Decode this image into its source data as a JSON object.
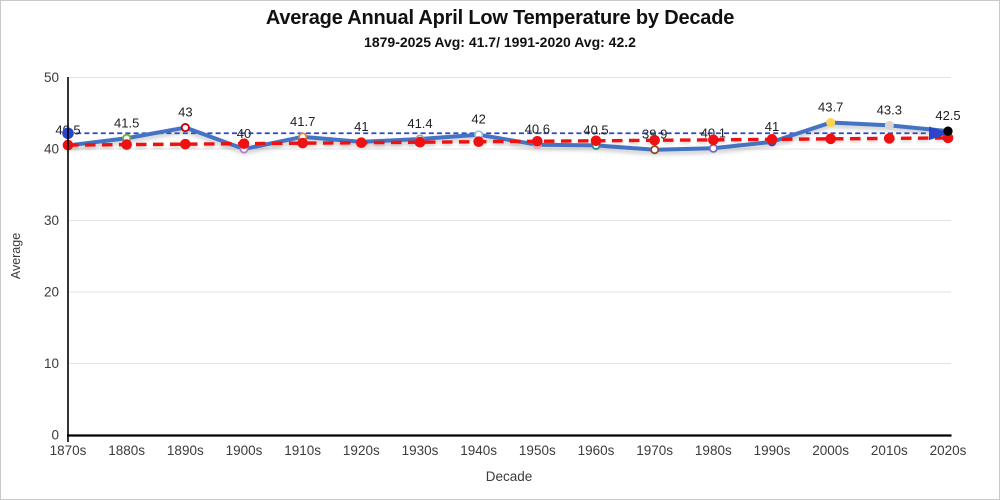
{
  "chart_data": {
    "type": "line",
    "title": "Average Annual April Low Temperature by Decade",
    "subtitle": "1879-2025 Avg: 41.7/ 1991-2020 Avg: 42.2",
    "xlabel": "Decade",
    "ylabel": "Average",
    "ylim": [
      0,
      50
    ],
    "yticks": [
      0,
      10,
      20,
      30,
      40,
      50
    ],
    "grid": "horizontal-faint",
    "legend": "none",
    "categories": [
      "1870s",
      "1880s",
      "1890s",
      "1900s",
      "1910s",
      "1920s",
      "1930s",
      "1940s",
      "1950s",
      "1960s",
      "1970s",
      "1980s",
      "1990s",
      "2000s",
      "2010s",
      "2020s"
    ],
    "series": [
      {
        "name": "decade-average-low-temp",
        "type": "line",
        "color": "#4472C4",
        "values": [
          40.5,
          41.5,
          43,
          40,
          41.7,
          41,
          41.4,
          42,
          40.6,
          40.5,
          39.9,
          40.1,
          41,
          43.7,
          43.3,
          42.5
        ],
        "labels": [
          "40.5",
          "41.5",
          "43",
          "40",
          "41.7",
          "41",
          "41.4",
          "42",
          "40.6",
          "40.5",
          "39.9",
          "40.1",
          "41",
          "43.7",
          "43.3",
          "42.5"
        ],
        "marker_colors": [
          "#4472C4",
          "#70AD47",
          "#C00000",
          "#B07CC6",
          "#ED7D31",
          "#4472C4",
          "#A5A5A5",
          "#9DC3E6",
          "#F2A2B8",
          "#1F8F8F",
          "#8B4A2F",
          "#7B68C8",
          "#2B45C8",
          "#FFD34D",
          "#D6D4D4",
          "#000000"
        ],
        "marker_filled": [
          false,
          false,
          false,
          false,
          false,
          false,
          false,
          false,
          false,
          false,
          false,
          false,
          false,
          true,
          true,
          true
        ],
        "end_marker_color": "#000000"
      },
      {
        "name": "linear-trend",
        "type": "dashed-line-with-dots",
        "color": "#EE1111",
        "values": [
          40.55,
          40.62,
          40.68,
          40.75,
          40.82,
          40.88,
          40.95,
          41.02,
          41.08,
          41.15,
          41.22,
          41.28,
          41.35,
          41.42,
          41.48,
          41.55
        ]
      },
      {
        "name": "avg-1991-2020",
        "type": "horizontal-dashed-line-with-arrow",
        "color": "#2B45C8",
        "value": 42.2
      }
    ],
    "colors": {
      "grid": "#E3E3E3",
      "axis": "#000000",
      "tick_label": "#3b3b3b",
      "data_label": "#1f1f1f"
    }
  }
}
